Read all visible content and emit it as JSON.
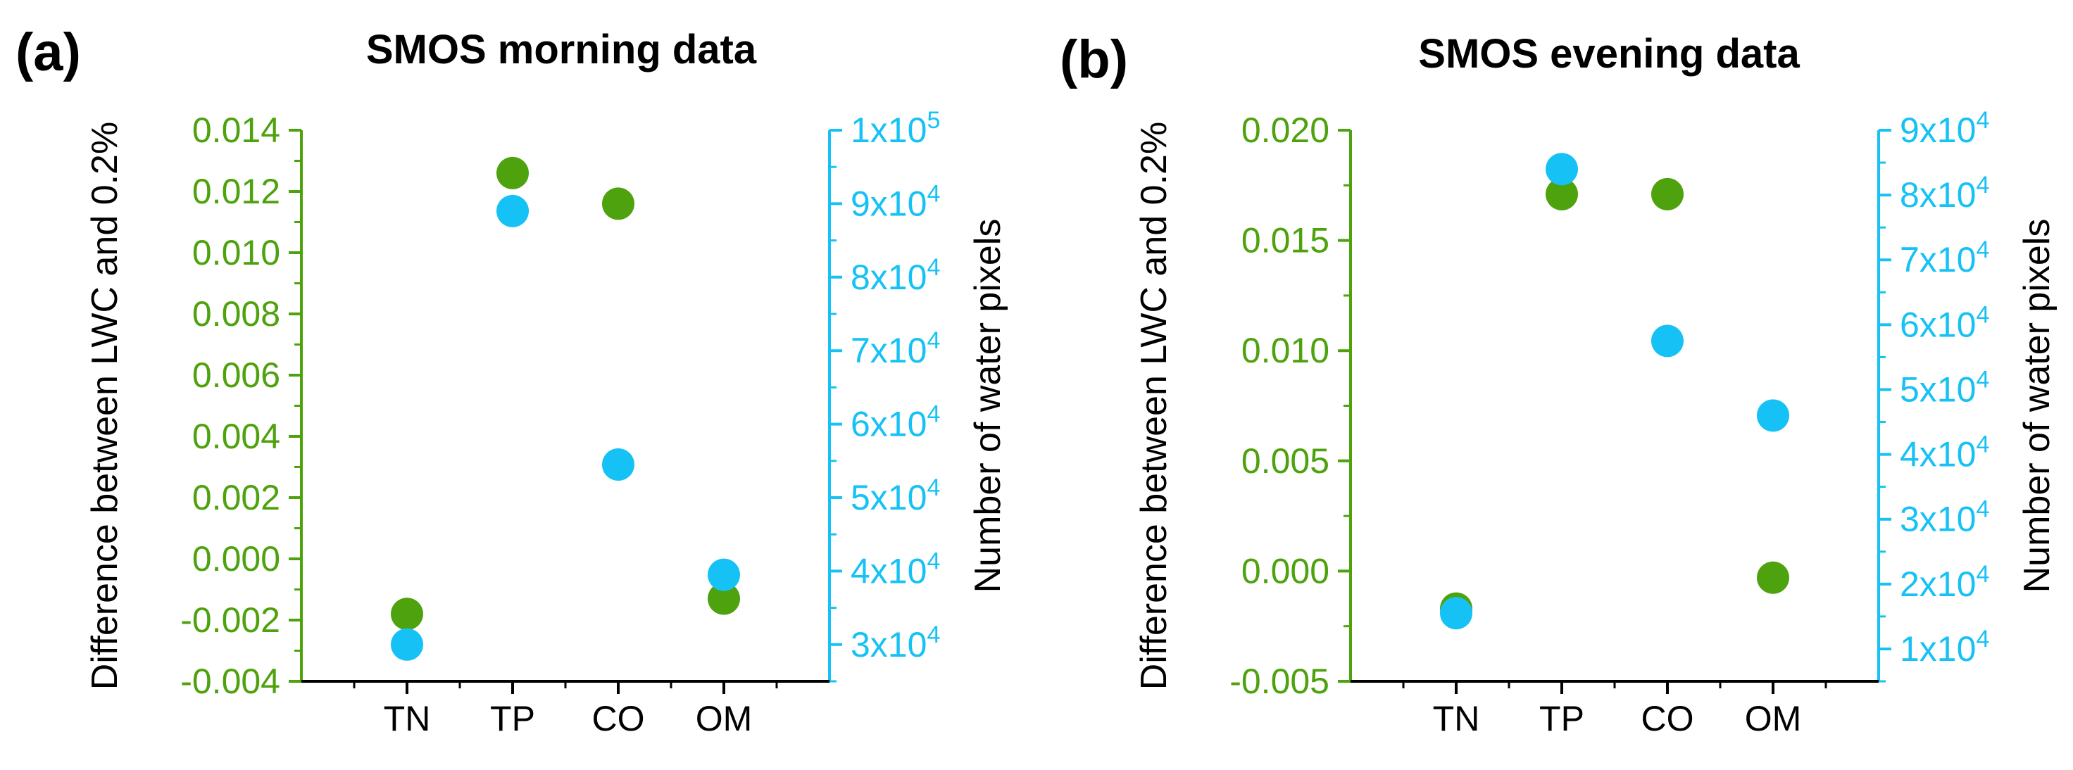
{
  "colors": {
    "left_series": "#4ea20e",
    "right_series": "#16c2f5",
    "axis_x": "#000000"
  },
  "chart_data": [
    {
      "type": "scatter",
      "panel_label": "(a)",
      "title": "SMOS morning data",
      "categories": [
        "TN",
        "TP",
        "CO",
        "OM"
      ],
      "ylabel": "Difference between LWC and 0.2%",
      "y2label": "Number of water pixels",
      "ylim": [
        -0.004,
        0.014
      ],
      "y_ticks": [
        -0.004,
        -0.002,
        0.0,
        0.002,
        0.004,
        0.006,
        0.008,
        0.01,
        0.012,
        0.014
      ],
      "y_tick_labels": [
        "-0.004",
        "-0.002",
        "0.000",
        "0.002",
        "0.004",
        "0.006",
        "0.008",
        "0.010",
        "0.012",
        "0.014"
      ],
      "y2lim": [
        25000,
        100000
      ],
      "y2_ticks": [
        30000,
        40000,
        50000,
        60000,
        70000,
        80000,
        90000,
        100000
      ],
      "y2_tick_labels": [
        {
          "mantissa": "3x10",
          "exp": "4"
        },
        {
          "mantissa": "4x10",
          "exp": "4"
        },
        {
          "mantissa": "5x10",
          "exp": "4"
        },
        {
          "mantissa": "6x10",
          "exp": "4"
        },
        {
          "mantissa": "7x10",
          "exp": "4"
        },
        {
          "mantissa": "8x10",
          "exp": "4"
        },
        {
          "mantissa": "9x10",
          "exp": "4"
        },
        {
          "mantissa": "1x10",
          "exp": "5"
        }
      ],
      "series": [
        {
          "name": "Difference between LWC and 0.2%",
          "axis": "left",
          "values": [
            -0.0018,
            0.0126,
            0.0116,
            -0.0013
          ]
        },
        {
          "name": "Number of water pixels",
          "axis": "right",
          "values": [
            30000,
            89000,
            54500,
            39500
          ]
        }
      ]
    },
    {
      "type": "scatter",
      "panel_label": "(b)",
      "title": "SMOS evening data",
      "categories": [
        "TN",
        "TP",
        "CO",
        "OM"
      ],
      "ylabel": "Difference between LWC and 0.2%",
      "y2label": "Number of water pixels",
      "ylim": [
        -0.005,
        0.02
      ],
      "y_ticks": [
        -0.005,
        0.0,
        0.005,
        0.01,
        0.015,
        0.02
      ],
      "y_tick_labels": [
        "-0.005",
        "0.000",
        "0.005",
        "0.010",
        "0.015",
        "0.020"
      ],
      "y2lim": [
        5000,
        90000
      ],
      "y2_ticks": [
        10000,
        20000,
        30000,
        40000,
        50000,
        60000,
        70000,
        80000,
        90000
      ],
      "y2_tick_labels": [
        {
          "mantissa": "1x10",
          "exp": "4"
        },
        {
          "mantissa": "2x10",
          "exp": "4"
        },
        {
          "mantissa": "3x10",
          "exp": "4"
        },
        {
          "mantissa": "4x10",
          "exp": "4"
        },
        {
          "mantissa": "5x10",
          "exp": "4"
        },
        {
          "mantissa": "6x10",
          "exp": "4"
        },
        {
          "mantissa": "7x10",
          "exp": "4"
        },
        {
          "mantissa": "8x10",
          "exp": "4"
        },
        {
          "mantissa": "9x10",
          "exp": "4"
        }
      ],
      "series": [
        {
          "name": "Difference between LWC and 0.2%",
          "axis": "left",
          "values": [
            -0.0017,
            0.0171,
            0.0171,
            -0.0003
          ]
        },
        {
          "name": "Number of water pixels",
          "axis": "right",
          "values": [
            15500,
            84000,
            57500,
            46000
          ]
        }
      ]
    }
  ]
}
